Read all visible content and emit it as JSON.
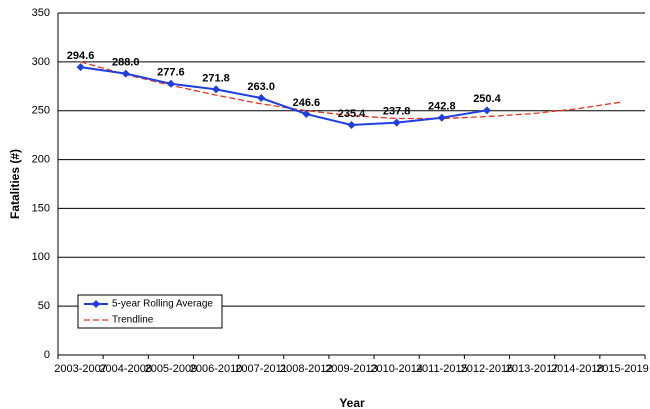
{
  "chart_data": {
    "type": "line",
    "x_label": "Year",
    "y_label": "Fatalities (#)",
    "categories": [
      "2003-2007",
      "2004-2008",
      "2005-2009",
      "2006-2010",
      "2007-2011",
      "2008-2012",
      "2009-2013",
      "2010-2014",
      "2011-2015",
      "2012-2016",
      "2013-2017",
      "2014-2018",
      "2015-2019"
    ],
    "series": [
      {
        "name": "5-year Rolling Average",
        "color": "#1f3fe0",
        "style": "solid-diamond",
        "values": [
          294.6,
          288.0,
          277.6,
          271.8,
          263.0,
          246.6,
          235.4,
          237.8,
          242.8,
          250.4,
          null,
          null,
          null
        ],
        "value_labels": [
          "294.6",
          "288.0",
          "277.6",
          "271.8",
          "263.0",
          "246.6",
          "235.4",
          "237.8",
          "242.8",
          "250.4",
          null,
          null,
          null
        ]
      },
      {
        "name": "Trendline",
        "color": "#e8321e",
        "style": "dashed",
        "values": [
          300,
          287,
          276,
          266,
          257,
          250,
          245,
          242,
          242,
          244,
          247,
          252,
          259
        ]
      }
    ],
    "ylim": [
      0,
      350
    ],
    "yticks": [
      0,
      50,
      100,
      150,
      200,
      250,
      300,
      350
    ],
    "grid": true,
    "legend": "lower left"
  }
}
